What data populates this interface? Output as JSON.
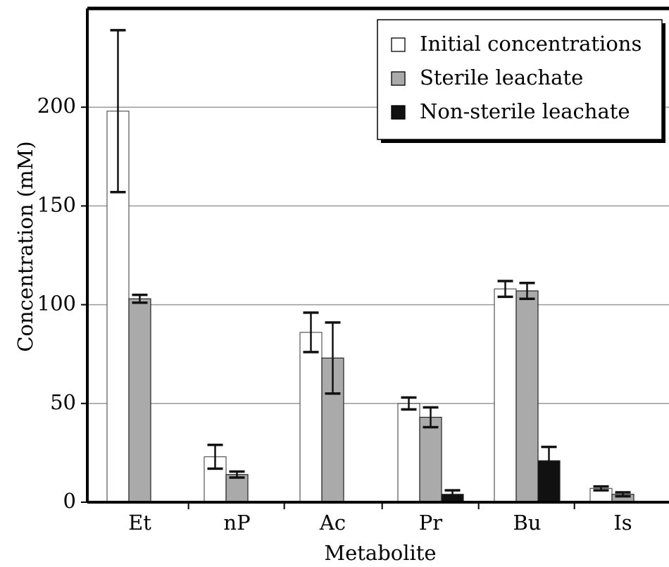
{
  "chart_data": {
    "type": "bar",
    "xlabel": "Metabolite",
    "ylabel": "Concentration (mM)",
    "ylim": [
      0,
      250
    ],
    "yticks": [
      0,
      50,
      100,
      150,
      200
    ],
    "grid": true,
    "legend_position": "top-right",
    "categories": [
      "Et",
      "nP",
      "Ac",
      "Pr",
      "Bu",
      "Is"
    ],
    "series": [
      {
        "name": "Initial concentrations",
        "color": "#ffffff",
        "values": [
          198,
          23,
          86,
          50,
          108,
          7
        ],
        "errors": [
          41,
          6,
          10,
          3,
          4,
          1
        ]
      },
      {
        "name": "Sterile leachate",
        "color": "#aaaaaa",
        "values": [
          103,
          14,
          73,
          43,
          107,
          4
        ],
        "errors": [
          2,
          1.5,
          18,
          5,
          4,
          1
        ]
      },
      {
        "name": "Non-sterile leachate",
        "color": "#111111",
        "values": [
          0,
          0.5,
          0.5,
          4,
          21,
          0
        ],
        "errors": [
          0,
          0,
          0,
          2,
          7,
          0
        ]
      }
    ]
  }
}
